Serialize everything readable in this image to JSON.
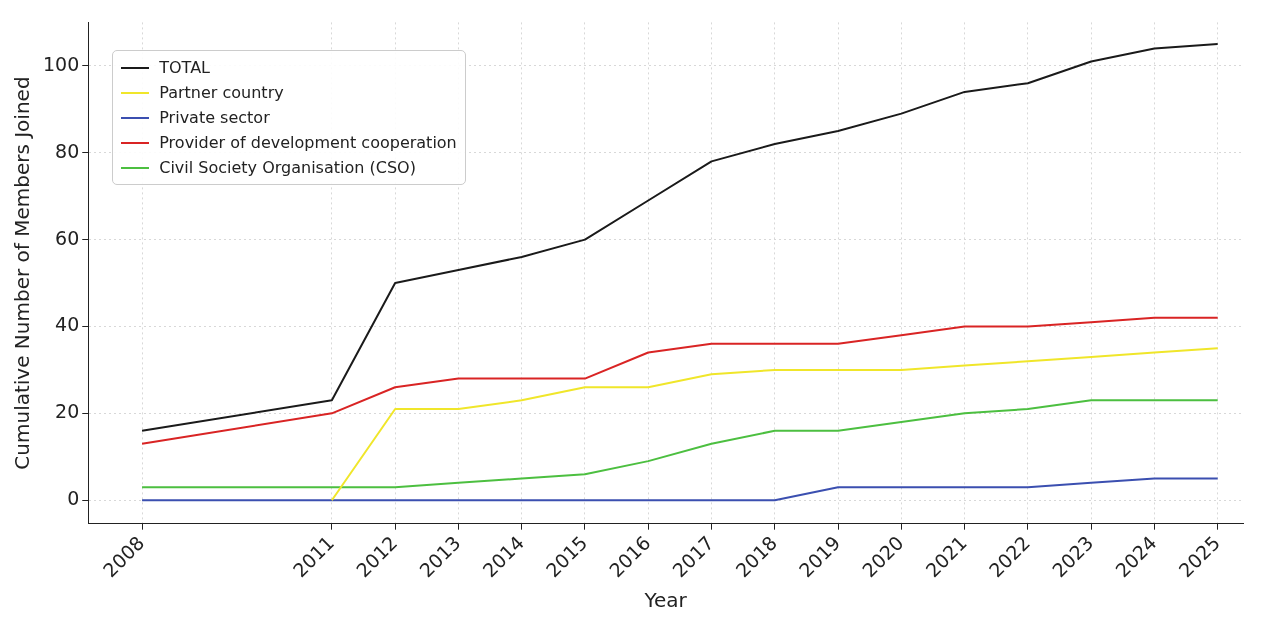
{
  "chart_data": {
    "type": "line",
    "xlabel": "Year",
    "ylabel": "Cumulative Number of Members Joined",
    "x": [
      2008,
      2011,
      2012,
      2013,
      2014,
      2015,
      2016,
      2017,
      2018,
      2019,
      2020,
      2021,
      2022,
      2023,
      2024,
      2025
    ],
    "series": [
      {
        "name": "TOTAL",
        "color": "#1a1a1a",
        "values": [
          16,
          23,
          50,
          53,
          56,
          60,
          69,
          78,
          82,
          85,
          89,
          94,
          96,
          101,
          104,
          105
        ]
      },
      {
        "name": "Partner country",
        "color": "#f0e62a",
        "values": [
          null,
          0,
          21,
          21,
          23,
          26,
          26,
          29,
          30,
          30,
          30,
          31,
          32,
          33,
          34,
          35
        ]
      },
      {
        "name": "Private sector",
        "color": "#3b4fb0",
        "values": [
          0,
          0,
          0,
          0,
          0,
          0,
          0,
          0,
          0,
          3,
          3,
          3,
          3,
          4,
          5,
          5
        ]
      },
      {
        "name": "Provider of development cooperation",
        "color": "#d92424",
        "values": [
          13,
          20,
          26,
          28,
          28,
          28,
          34,
          36,
          36,
          36,
          38,
          40,
          40,
          41,
          42,
          42
        ]
      },
      {
        "name": "Civil Society Organisation (CSO)",
        "color": "#4cbf40",
        "values": [
          3,
          3,
          3,
          4,
          5,
          6,
          9,
          13,
          16,
          16,
          18,
          20,
          21,
          23,
          23,
          23
        ]
      }
    ],
    "xlim": [
      2007.15,
      2025.4
    ],
    "xticks": [
      2008,
      2011,
      2012,
      2013,
      2014,
      2015,
      2016,
      2017,
      2018,
      2019,
      2020,
      2021,
      2022,
      2023,
      2024,
      2025
    ],
    "ylim": [
      -5.4,
      110
    ],
    "yticks": [
      0,
      20,
      40,
      60,
      80,
      100
    ],
    "grid": true,
    "legend": "top left",
    "marker": "none",
    "line_style": "solid"
  }
}
